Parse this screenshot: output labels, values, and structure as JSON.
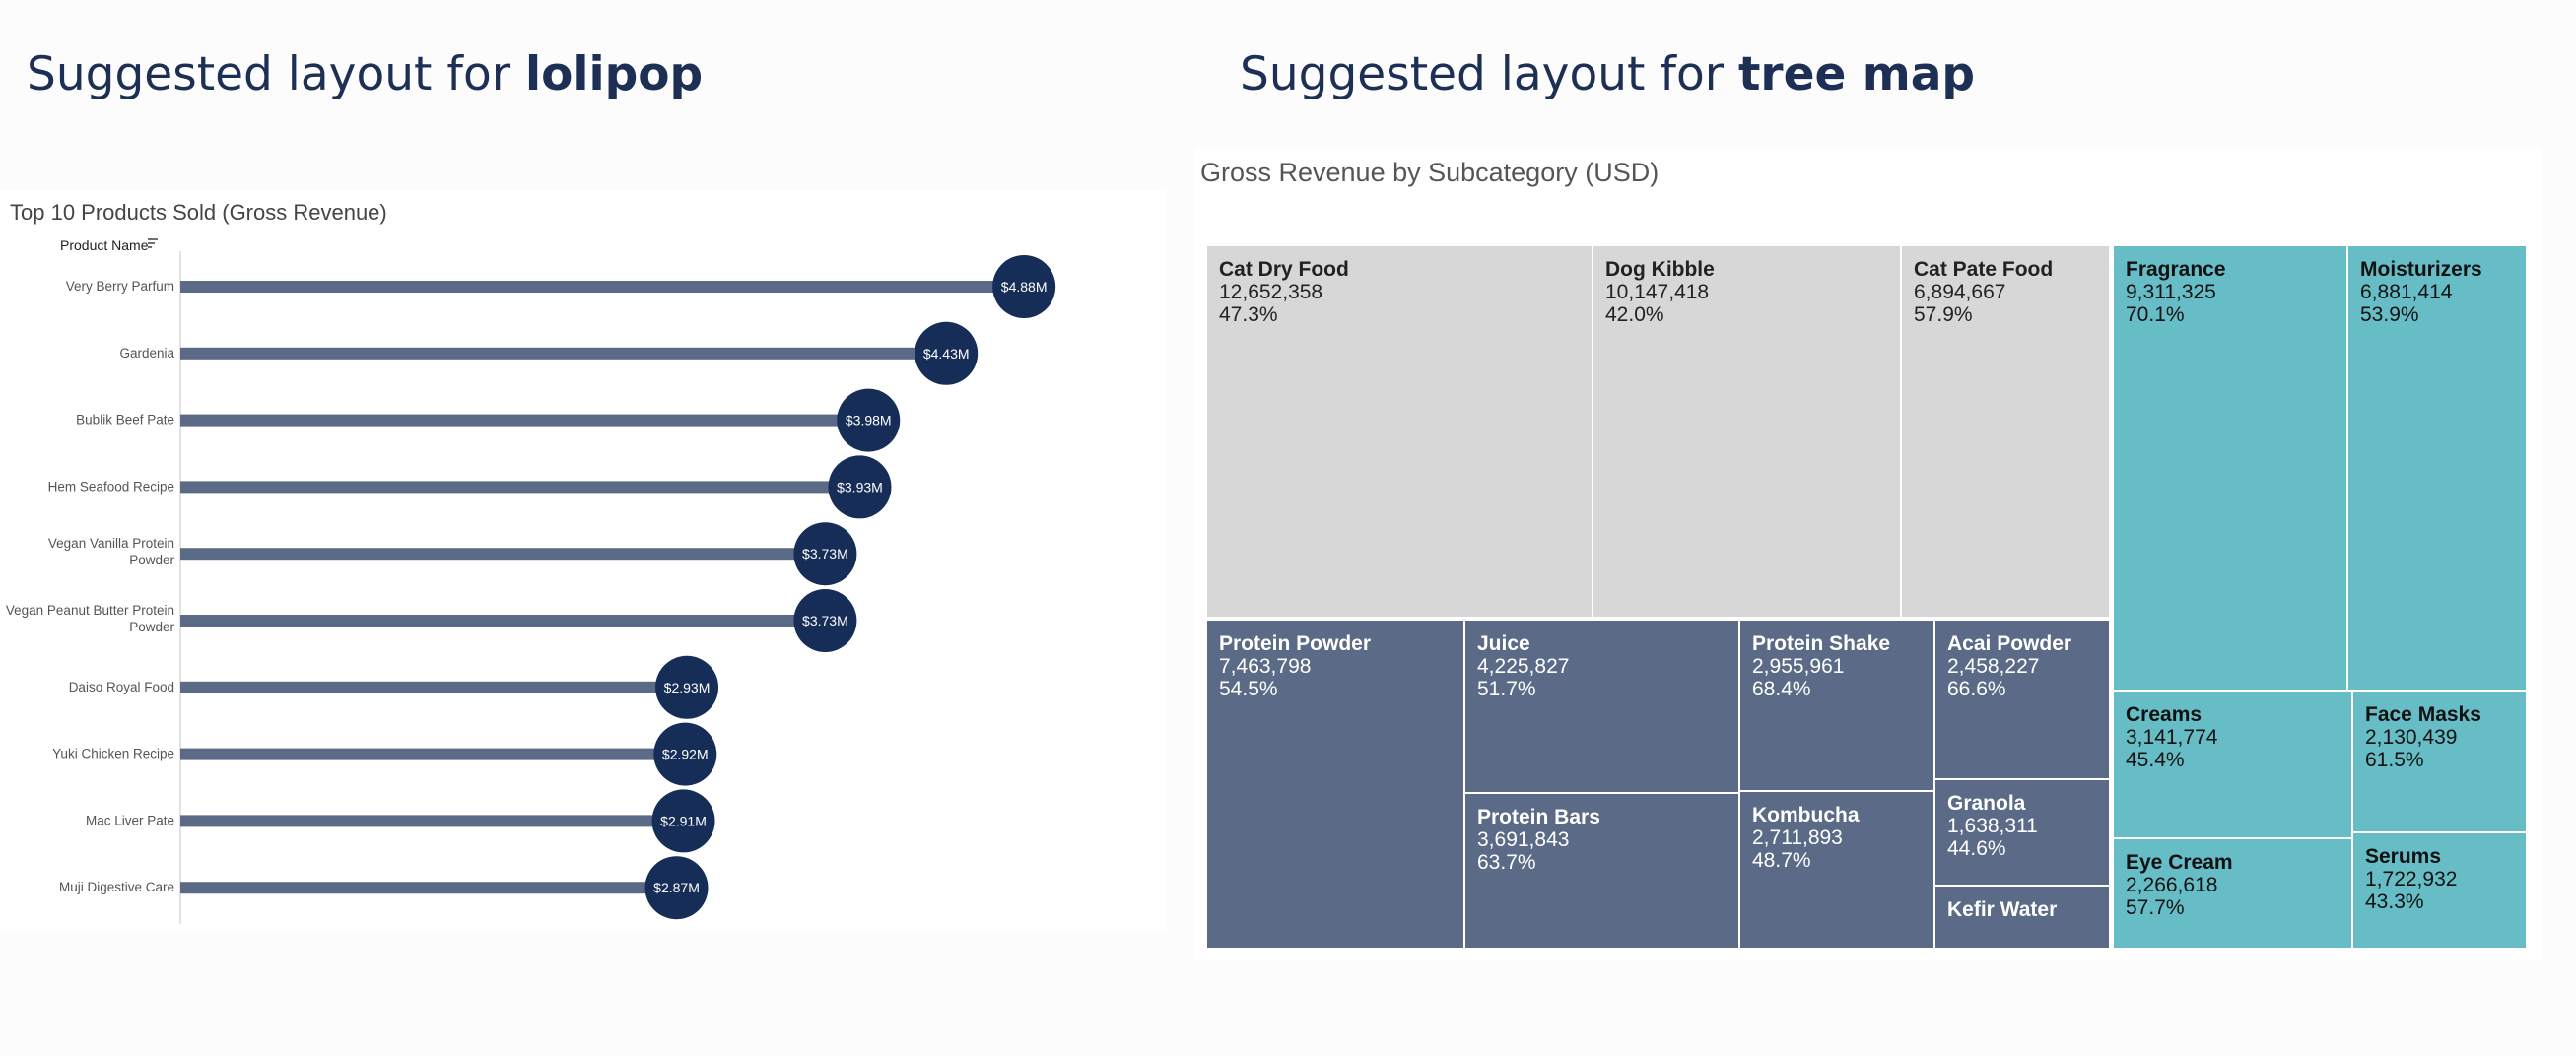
{
  "headings": {
    "left": {
      "prefix": "Suggested layout for ",
      "bold": "lolipop"
    },
    "right": {
      "prefix": "Suggested layout for ",
      "bold": "tree map"
    }
  },
  "colors": {
    "lollipop_bar": "#5b6b87",
    "lollipop_dot": "#162d57",
    "treemap_grey": "#d7d7d7",
    "treemap_slate": "#5b6b87",
    "treemap_teal": "#66bdc6"
  },
  "chart_data": [
    {
      "type": "lollipop",
      "title": "Top 10 Products Sold (Gross Revenue)",
      "ylabel": "Product Name",
      "sort_icon": "sort-icon",
      "xlim": [
        0,
        5.7
      ],
      "categories": [
        [
          "Very Berry Parfum"
        ],
        [
          "Gardenia"
        ],
        [
          "Bublik Beef Pate"
        ],
        [
          "Hem Seafood Recipe"
        ],
        [
          "Vegan Vanilla Protein",
          "Powder"
        ],
        [
          "Vegan Peanut Butter Protein",
          "Powder"
        ],
        [
          "Daiso Royal Food"
        ],
        [
          "Yuki Chicken Recipe"
        ],
        [
          "Mac Liver Pate"
        ],
        [
          "Muji Digestive Care"
        ]
      ],
      "values": [
        4.88,
        4.43,
        3.98,
        3.93,
        3.73,
        3.73,
        2.93,
        2.92,
        2.91,
        2.87
      ],
      "labels": [
        "$4.88M",
        "$4.43M",
        "$3.98M",
        "$3.93M",
        "$3.73M",
        "$3.73M",
        "$2.93M",
        "$2.92M",
        "$2.91M",
        "$2.87M"
      ]
    },
    {
      "type": "treemap",
      "title": "Gross Revenue by Subcategory (USD)",
      "groups": [
        {
          "color": "grey",
          "items": [
            {
              "name": "Cat Dry Food",
              "value": "12,652,358",
              "pct": "47.3%"
            },
            {
              "name": "Dog Kibble",
              "value": "10,147,418",
              "pct": "42.0%"
            },
            {
              "name": "Cat Pate Food",
              "value": "6,894,667",
              "pct": "57.9%"
            }
          ]
        },
        {
          "color": "slate",
          "items": [
            {
              "name": "Protein Powder",
              "value": "7,463,798",
              "pct": "54.5%"
            },
            {
              "name": "Juice",
              "value": "4,225,827",
              "pct": "51.7%"
            },
            {
              "name": "Protein Bars",
              "value": "3,691,843",
              "pct": "63.7%"
            },
            {
              "name": "Protein Shake",
              "value": "2,955,961",
              "pct": "68.4%"
            },
            {
              "name": "Kombucha",
              "value": "2,711,893",
              "pct": "48.7%"
            },
            {
              "name": "Acai Powder",
              "value": "2,458,227",
              "pct": "66.6%"
            },
            {
              "name": "Granola",
              "value": "1,638,311",
              "pct": "44.6%"
            },
            {
              "name": "Kefir Water",
              "value": "",
              "pct": ""
            }
          ]
        },
        {
          "color": "teal",
          "items": [
            {
              "name": "Fragrance",
              "value": "9,311,325",
              "pct": "70.1%"
            },
            {
              "name": "Moisturizers",
              "value": "6,881,414",
              "pct": "53.9%"
            },
            {
              "name": "Creams",
              "value": "3,141,774",
              "pct": "45.4%"
            },
            {
              "name": "Face Masks",
              "value": "2,130,439",
              "pct": "61.5%"
            },
            {
              "name": "Eye Cream",
              "value": "2,266,618",
              "pct": "57.7%"
            },
            {
              "name": "Serums",
              "value": "1,722,932",
              "pct": "43.3%"
            }
          ]
        }
      ]
    }
  ]
}
